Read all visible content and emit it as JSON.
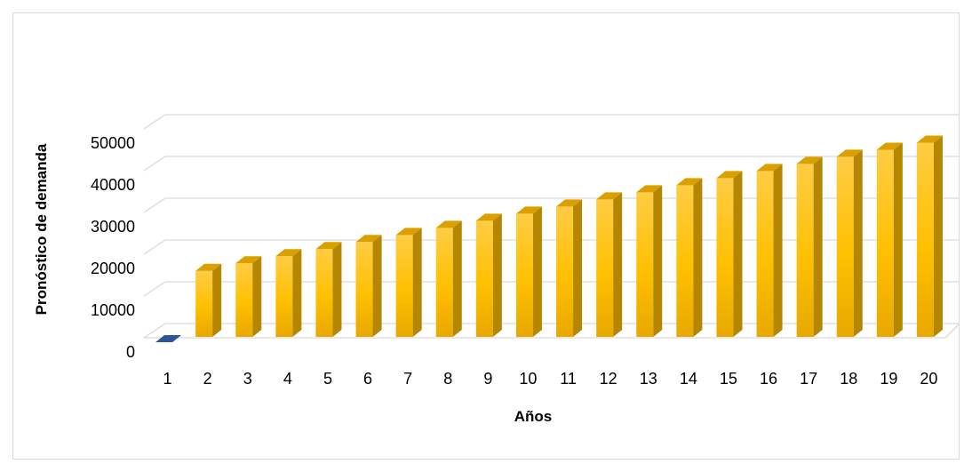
{
  "chart_data": {
    "type": "bar",
    "style": "3d-column",
    "title": "",
    "xlabel": "Años",
    "ylabel": "Pronóstico de demanda",
    "categories": [
      "1",
      "2",
      "3",
      "4",
      "5",
      "6",
      "7",
      "8",
      "9",
      "10",
      "11",
      "12",
      "13",
      "14",
      "15",
      "16",
      "17",
      "18",
      "19",
      "20"
    ],
    "series": [
      {
        "values": [
          0,
          15800,
          17600,
          19300,
          21000,
          22700,
          24400,
          26100,
          27800,
          29500,
          31200,
          32900,
          34600,
          36300,
          38000,
          39700,
          41400,
          43100,
          44800,
          46500
        ],
        "color": "#FFC000"
      }
    ],
    "first_bar_color": "#2E5597",
    "ylim": [
      0,
      50000
    ],
    "yticks": [
      "0",
      "10000",
      "20000",
      "30000",
      "40000",
      "50000"
    ],
    "grid": true,
    "legend": "none"
  }
}
